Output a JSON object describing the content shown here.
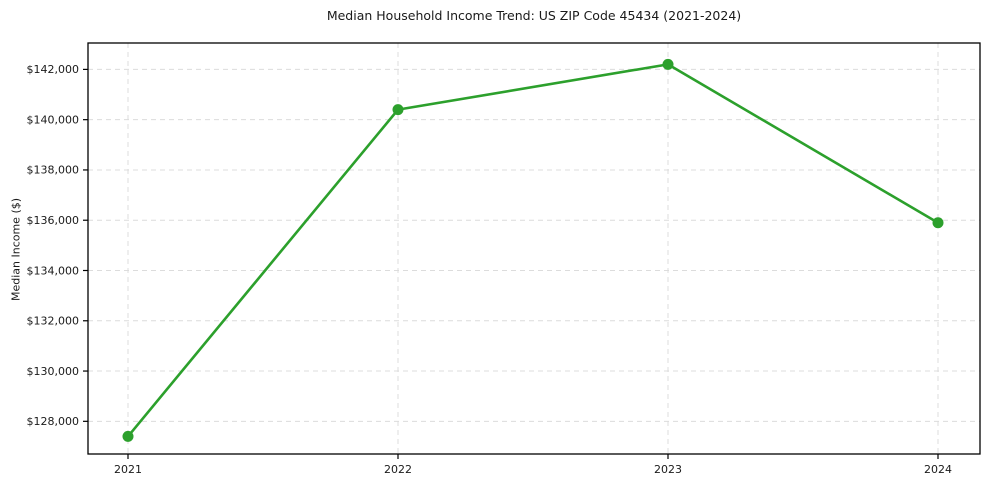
{
  "chart_data": {
    "type": "line",
    "title": "Median Household Income Trend: US ZIP Code 45434 (2021-2024)",
    "xlabel": "",
    "ylabel": "Median Income ($)",
    "x": [
      2021,
      2022,
      2023,
      2024
    ],
    "x_tick_labels": [
      "2021",
      "2022",
      "2023",
      "2024"
    ],
    "series": [
      {
        "name": "median-household-income",
        "values": [
          127400,
          140400,
          142200,
          135900
        ],
        "color": "#2ca02c",
        "marker": "circle"
      }
    ],
    "y_ticks": [
      128000,
      130000,
      132000,
      134000,
      136000,
      138000,
      140000,
      142000
    ],
    "y_tick_labels": [
      "$128,000",
      "$130,000",
      "$132,000",
      "$134,000",
      "$136,000",
      "$138,000",
      "$140,000",
      "$142,000"
    ],
    "ylim": [
      126700,
      143050
    ],
    "grid": true,
    "grid_style": "dashed",
    "legend_position": "none",
    "colors": {
      "line": "#2ca02c",
      "grid": "#dcdcdc",
      "spine": "#000000",
      "text": "#1a1a1a",
      "background": "#ffffff"
    }
  }
}
